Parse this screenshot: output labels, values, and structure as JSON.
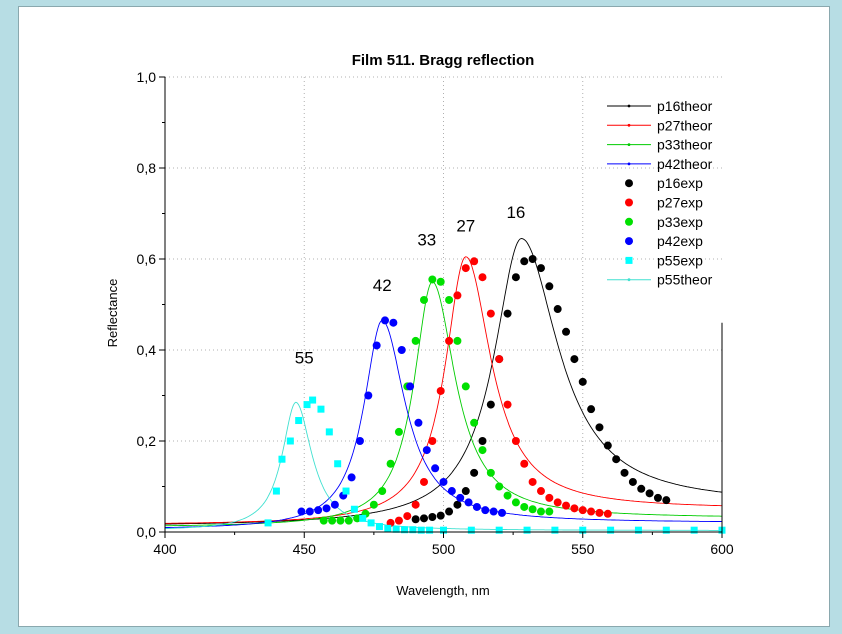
{
  "chart_data": {
    "type": "scatter",
    "title": "Film 511. Bragg reflection",
    "xlabel": "Wavelength, nm",
    "ylabel": "Reflectance",
    "xlim": [
      400,
      600
    ],
    "ylim": [
      0,
      1.0
    ],
    "x_ticks": [
      400,
      450,
      500,
      550,
      600
    ],
    "x_tick_labels": [
      "400",
      "450",
      "500",
      "550",
      "600"
    ],
    "y_ticks": [
      0,
      0.2,
      0.4,
      0.6,
      0.8,
      1.0
    ],
    "y_tick_labels": [
      "0,0",
      "0,2",
      "0,4",
      "0,6",
      "0,8",
      "1,0"
    ],
    "grid": "dotted",
    "legend_position": "top-right",
    "legend": [
      {
        "name": "p16theor",
        "kind": "line",
        "color": "#000000"
      },
      {
        "name": "p27theor",
        "kind": "line",
        "color": "#ff0000"
      },
      {
        "name": "p33theor",
        "kind": "line",
        "color": "#00cc00"
      },
      {
        "name": "p42theor",
        "kind": "line",
        "color": "#0000ff"
      },
      {
        "name": "p16exp",
        "kind": "circle",
        "color": "#000000"
      },
      {
        "name": "p27exp",
        "kind": "circle",
        "color": "#ff0000"
      },
      {
        "name": "p33exp",
        "kind": "circle",
        "color": "#00e000"
      },
      {
        "name": "p42exp",
        "kind": "circle",
        "color": "#0000ff"
      },
      {
        "name": "p55exp",
        "kind": "square",
        "color": "#00ffff"
      },
      {
        "name": "p55theor",
        "kind": "line",
        "color": "#40e0d0"
      }
    ],
    "peak_labels": [
      {
        "text": "16",
        "x": 526,
        "y": 0.69
      },
      {
        "text": "27",
        "x": 508,
        "y": 0.66
      },
      {
        "text": "33",
        "x": 494,
        "y": 0.63
      },
      {
        "text": "42",
        "x": 478,
        "y": 0.53
      },
      {
        "text": "55",
        "x": 450,
        "y": 0.37
      }
    ],
    "theory_curves": [
      {
        "name": "p16theor",
        "color": "#000000",
        "peak_x": 528,
        "peak_y": 0.645,
        "gamma_left": 12,
        "gamma_right": 16,
        "floor_left": 0.012,
        "floor_right": 0.06
      },
      {
        "name": "p27theor",
        "color": "#ff0000",
        "peak_x": 508,
        "peak_y": 0.605,
        "gamma_left": 9,
        "gamma_right": 11,
        "floor_left": 0.015,
        "floor_right": 0.05
      },
      {
        "name": "p33theor",
        "color": "#00cc00",
        "peak_x": 496,
        "peak_y": 0.55,
        "gamma_left": 8,
        "gamma_right": 10,
        "floor_left": 0.01,
        "floor_right": 0.03
      },
      {
        "name": "p42theor",
        "color": "#0000ff",
        "peak_x": 478,
        "peak_y": 0.465,
        "gamma_left": 8,
        "gamma_right": 10,
        "floor_left": 0.005,
        "floor_right": 0.02
      },
      {
        "name": "p55theor",
        "color": "#40e0d0",
        "peak_x": 447,
        "peak_y": 0.285,
        "gamma_left": 6,
        "gamma_right": 7,
        "floor_left": 0.003,
        "floor_right": 0.003
      }
    ],
    "series": [
      {
        "name": "p16exp",
        "marker": "circle",
        "color": "#000000",
        "x": [
          490,
          493,
          496,
          499,
          502,
          505,
          508,
          511,
          514,
          517,
          520,
          523,
          526,
          529,
          532,
          535,
          538,
          541,
          544,
          547,
          550,
          553,
          556,
          559,
          562,
          565,
          568,
          571,
          574,
          577,
          580
        ],
        "y": [
          0.028,
          0.03,
          0.033,
          0.036,
          0.045,
          0.06,
          0.09,
          0.13,
          0.2,
          0.28,
          0.38,
          0.48,
          0.56,
          0.595,
          0.6,
          0.58,
          0.54,
          0.49,
          0.44,
          0.38,
          0.33,
          0.27,
          0.23,
          0.19,
          0.16,
          0.13,
          0.11,
          0.095,
          0.085,
          0.075,
          0.07
        ]
      },
      {
        "name": "p27exp",
        "marker": "circle",
        "color": "#ff0000",
        "x": [
          481,
          484,
          487,
          490,
          493,
          496,
          499,
          502,
          505,
          508,
          511,
          514,
          517,
          520,
          523,
          526,
          529,
          532,
          535,
          538,
          541,
          544,
          547,
          550,
          553,
          556,
          559
        ],
        "y": [
          0.02,
          0.025,
          0.035,
          0.06,
          0.11,
          0.2,
          0.31,
          0.42,
          0.52,
          0.58,
          0.595,
          0.56,
          0.48,
          0.38,
          0.28,
          0.2,
          0.15,
          0.11,
          0.09,
          0.075,
          0.065,
          0.058,
          0.052,
          0.048,
          0.045,
          0.042,
          0.04
        ]
      },
      {
        "name": "p33exp",
        "marker": "circle",
        "color": "#00e000",
        "x": [
          457,
          460,
          463,
          466,
          469,
          472,
          475,
          478,
          481,
          484,
          487,
          490,
          493,
          496,
          499,
          502,
          505,
          508,
          511,
          514,
          517,
          520,
          523,
          526,
          529,
          532,
          535,
          538
        ],
        "y": [
          0.025,
          0.025,
          0.025,
          0.025,
          0.03,
          0.04,
          0.06,
          0.09,
          0.15,
          0.22,
          0.32,
          0.42,
          0.51,
          0.555,
          0.55,
          0.51,
          0.42,
          0.32,
          0.24,
          0.18,
          0.13,
          0.1,
          0.08,
          0.065,
          0.055,
          0.05,
          0.045,
          0.045
        ]
      },
      {
        "name": "p42exp",
        "marker": "circle",
        "color": "#0000ff",
        "x": [
          449,
          452,
          455,
          458,
          461,
          464,
          467,
          470,
          473,
          476,
          479,
          482,
          485,
          488,
          491,
          494,
          497,
          500,
          503,
          506,
          509,
          512,
          515,
          518,
          521
        ],
        "y": [
          0.045,
          0.045,
          0.048,
          0.052,
          0.06,
          0.08,
          0.12,
          0.2,
          0.3,
          0.41,
          0.465,
          0.46,
          0.4,
          0.32,
          0.24,
          0.18,
          0.14,
          0.11,
          0.09,
          0.075,
          0.065,
          0.055,
          0.048,
          0.045,
          0.042
        ]
      },
      {
        "name": "p55exp",
        "marker": "square",
        "color": "#00ffff",
        "x": [
          437,
          440,
          442,
          445,
          448,
          451,
          453,
          456,
          459,
          462,
          465,
          468,
          471,
          474,
          477,
          480,
          483,
          486,
          489,
          492,
          495,
          500,
          510,
          520,
          530,
          540,
          550,
          560,
          570,
          580,
          590,
          600
        ],
        "y": [
          0.02,
          0.09,
          0.16,
          0.2,
          0.245,
          0.28,
          0.29,
          0.27,
          0.22,
          0.15,
          0.09,
          0.05,
          0.03,
          0.02,
          0.012,
          0.008,
          0.006,
          0.005,
          0.005,
          0.004,
          0.004,
          0.004,
          0.004,
          0.004,
          0.004,
          0.004,
          0.004,
          0.004,
          0.004,
          0.004,
          0.004,
          0.004
        ]
      }
    ]
  }
}
